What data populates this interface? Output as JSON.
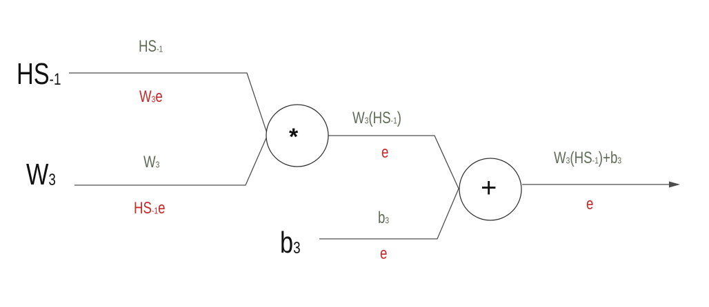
{
  "colors": {
    "forward": "#5f6b57",
    "gradient": "#c62828",
    "input": "#111111",
    "wire": "#4d4d4d"
  },
  "inputs": {
    "hs": {
      "main": "HS",
      "sub": "-1"
    },
    "w": {
      "main": "W",
      "sub": "3"
    },
    "b": {
      "main": "b",
      "sub": "3"
    }
  },
  "nodes": {
    "multiply": {
      "symbol": "*"
    },
    "add": {
      "symbol": "+"
    }
  },
  "edges": {
    "hs_to_mul": {
      "forward": {
        "main": "HS",
        "sub": "-1"
      },
      "gradient": {
        "main": "W",
        "sub": "3",
        "tail": "e"
      }
    },
    "w_to_mul": {
      "forward": {
        "main": "W",
        "sub": "3"
      },
      "gradient": {
        "main": "HS",
        "sub": "-1",
        "tail": "e"
      }
    },
    "mul_to_add": {
      "forward": {
        "p1": "W",
        "s1": "3",
        "p2": "(HS",
        "s2": "-1",
        "p3": ")"
      },
      "gradient": "e"
    },
    "b_to_add": {
      "forward": {
        "main": "b",
        "sub": "3"
      },
      "gradient": "e"
    },
    "output": {
      "forward": {
        "p1": "W",
        "s1": "3",
        "p2": "(HS",
        "s2": "-1",
        "p3": ")+b",
        "s3": "3"
      },
      "gradient": "e"
    }
  }
}
